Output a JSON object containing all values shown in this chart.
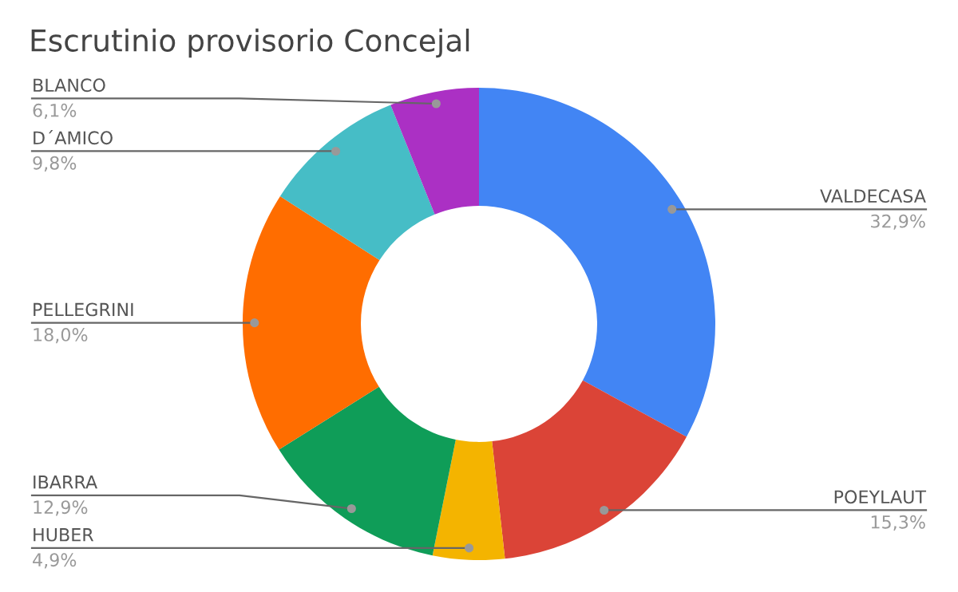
{
  "chart_data": {
    "type": "donut",
    "title": "Escrutinio provisorio Concejal",
    "categories": [
      "VALDECASA",
      "POEYLAUT",
      "HUBER",
      "IBARRA",
      "PELLEGRINI",
      "D´AMICO",
      "BLANCO"
    ],
    "values": [
      32.9,
      15.3,
      4.9,
      12.9,
      18.0,
      9.8,
      6.1
    ],
    "colors": [
      "#4285f4",
      "#db4437",
      "#f4b400",
      "#0f9d58",
      "#ff6d00",
      "#46bdc6",
      "#ab30c4"
    ],
    "value_labels": [
      "32,9%",
      "15,3%",
      "4,9%",
      "12,9%",
      "18,0%",
      "9,8%",
      "6,1%"
    ],
    "legend": false
  }
}
